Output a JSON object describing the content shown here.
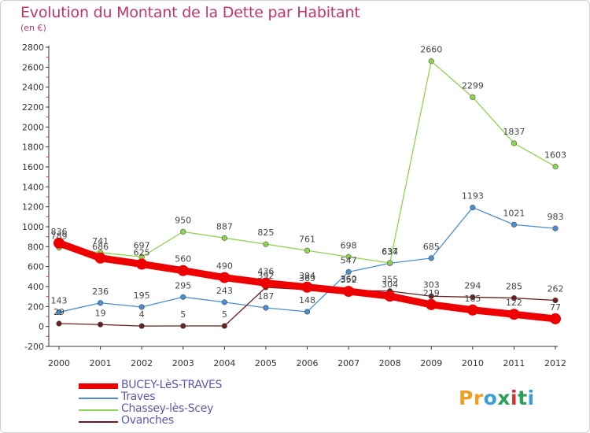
{
  "header": {
    "title": "Evolution du Montant de la Dette par Habitant",
    "subtitle": "(en €)"
  },
  "logo": {
    "text": "Proxiti",
    "colors": [
      "#f0a020",
      "#f0a020",
      "#3a9fd8",
      "#2ca05a",
      "#d03030",
      "#2ca05a",
      "#3a9fd8"
    ]
  },
  "chart_data": {
    "type": "line",
    "title": "Evolution du Montant de la Dette par Habitant",
    "subtitle": "(en €)",
    "xlabel": "",
    "ylabel": "",
    "x": [
      "2000",
      "2001",
      "2002",
      "2003",
      "2004",
      "2005",
      "2006",
      "2007",
      "2008",
      "2009",
      "2010",
      "2011",
      "2012"
    ],
    "ylim": [
      -200,
      2800
    ],
    "yticks": [
      -200,
      0,
      200,
      400,
      600,
      800,
      1000,
      1200,
      1400,
      1600,
      1800,
      2000,
      2200,
      2400,
      2600,
      2800
    ],
    "grid": false,
    "legend_position": "bottom-left",
    "series": [
      {
        "name": "BUCEY-LèS-TRAVES",
        "color": "#ee0000",
        "emphasis": true,
        "values": [
          836,
          686,
          625,
          560,
          490,
          436,
          394,
          352,
          304,
          219,
          165,
          122,
          77
        ]
      },
      {
        "name": "Traves",
        "color": "#4a8ed0",
        "values": [
          143,
          236,
          195,
          295,
          243,
          187,
          148,
          547,
          634,
          685,
          1193,
          1021,
          983
        ]
      },
      {
        "name": "Chassey-lès-Scey",
        "color": "#8fd450",
        "values": [
          789,
          741,
          697,
          950,
          887,
          825,
          761,
          698,
          637,
          2660,
          2299,
          1837,
          1603
        ]
      },
      {
        "name": "Ovanches",
        "color": "#6b1e1e",
        "values": [
          29,
          19,
          4,
          5,
          5,
          392,
          369,
          360,
          355,
          303,
          294,
          285,
          262
        ]
      }
    ]
  }
}
